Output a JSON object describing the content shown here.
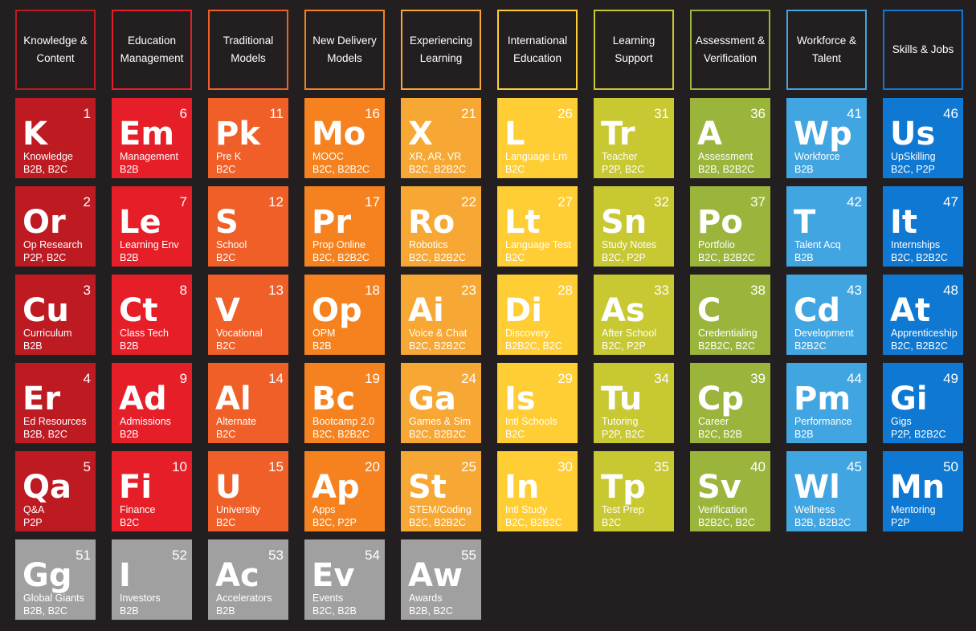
{
  "columns": [
    {
      "label": [
        "Knowledge &",
        "Content"
      ],
      "color": "#bd1a22"
    },
    {
      "label": [
        "Education",
        "Management"
      ],
      "color": "#e61e28"
    },
    {
      "label": [
        "Traditional",
        "Models"
      ],
      "color": "#f05f28"
    },
    {
      "label": [
        "New Delivery",
        "Models"
      ],
      "color": "#f5821f"
    },
    {
      "label": [
        "Experiencing",
        "Learning"
      ],
      "color": "#f7a733"
    },
    {
      "label": [
        "International",
        "Education"
      ],
      "color": "#ffcd34"
    },
    {
      "label": [
        "Learning",
        "Support"
      ],
      "color": "#c8c832"
    },
    {
      "label": [
        "Assessment &",
        "Verification"
      ],
      "color": "#9bb43c"
    },
    {
      "label": [
        "Workforce &",
        "Talent"
      ],
      "color": "#41a5e1"
    },
    {
      "label": [
        "Skills & Jobs"
      ],
      "color": "#0f78d2"
    }
  ],
  "extras_color": "#a0a0a0",
  "elements": [
    {
      "num": "1",
      "sym": "K",
      "name": "Knowledge",
      "biz": "B2B, B2C"
    },
    {
      "num": "2",
      "sym": "Or",
      "name": "Op Research",
      "biz": "P2P, B2C"
    },
    {
      "num": "3",
      "sym": "Cu",
      "name": "Curriculum",
      "biz": "B2B"
    },
    {
      "num": "4",
      "sym": "Er",
      "name": "Ed Resources",
      "biz": "B2B, B2C"
    },
    {
      "num": "5",
      "sym": "Qa",
      "name": "Q&A",
      "biz": "P2P"
    },
    {
      "num": "6",
      "sym": "Em",
      "name": "Management",
      "biz": "B2B"
    },
    {
      "num": "7",
      "sym": "Le",
      "name": "Learning Env",
      "biz": "B2B"
    },
    {
      "num": "8",
      "sym": "Ct",
      "name": "Class Tech",
      "biz": "B2B"
    },
    {
      "num": "9",
      "sym": "Ad",
      "name": "Admissions",
      "biz": "B2B"
    },
    {
      "num": "10",
      "sym": "Fi",
      "name": "Finance",
      "biz": "B2C"
    },
    {
      "num": "11",
      "sym": "Pk",
      "name": "Pre K",
      "biz": "B2C"
    },
    {
      "num": "12",
      "sym": "S",
      "name": "School",
      "biz": "B2C"
    },
    {
      "num": "13",
      "sym": "V",
      "name": "Vocational",
      "biz": "B2C"
    },
    {
      "num": "14",
      "sym": "Al",
      "name": "Alternate",
      "biz": "B2C"
    },
    {
      "num": "15",
      "sym": "U",
      "name": "University",
      "biz": "B2C"
    },
    {
      "num": "16",
      "sym": "Mo",
      "name": "MOOC",
      "biz": "B2C, B2B2C"
    },
    {
      "num": "17",
      "sym": "Pr",
      "name": "Prop Online",
      "biz": "B2C, B2B2C"
    },
    {
      "num": "18",
      "sym": "Op",
      "name": "OPM",
      "biz": "B2B"
    },
    {
      "num": "19",
      "sym": "Bc",
      "name": "Bootcamp 2.0",
      "biz": "B2C, B2B2C"
    },
    {
      "num": "20",
      "sym": "Ap",
      "name": "Apps",
      "biz": "B2C, P2P"
    },
    {
      "num": "21",
      "sym": "X",
      "name": "XR, AR, VR",
      "biz": "B2C, B2B2C"
    },
    {
      "num": "22",
      "sym": "Ro",
      "name": "Robotics",
      "biz": "B2C, B2B2C"
    },
    {
      "num": "23",
      "sym": "Ai",
      "name": "Voice & Chat",
      "biz": "B2C, B2B2C"
    },
    {
      "num": "24",
      "sym": "Ga",
      "name": "Games & Sim",
      "biz": "B2C, B2B2C"
    },
    {
      "num": "25",
      "sym": "St",
      "name": "STEM/Coding",
      "biz": "B2C, B2B2C"
    },
    {
      "num": "26",
      "sym": "L",
      "name": "Language Lrn",
      "biz": "B2C"
    },
    {
      "num": "27",
      "sym": "Lt",
      "name": "Language Test",
      "biz": "B2C"
    },
    {
      "num": "28",
      "sym": "Di",
      "name": "Discovery",
      "biz": "B2B2C, B2C"
    },
    {
      "num": "29",
      "sym": "Is",
      "name": "Intl Schools",
      "biz": "B2C"
    },
    {
      "num": "30",
      "sym": "In",
      "name": "Intl Study",
      "biz": "B2C, B2B2C"
    },
    {
      "num": "31",
      "sym": "Tr",
      "name": "Teacher",
      "biz": "P2P, B2C"
    },
    {
      "num": "32",
      "sym": "Sn",
      "name": "Study Notes",
      "biz": "B2C, P2P"
    },
    {
      "num": "33",
      "sym": "As",
      "name": "After School",
      "biz": "B2C, P2P"
    },
    {
      "num": "34",
      "sym": "Tu",
      "name": "Tutoring",
      "biz": "P2P, B2C"
    },
    {
      "num": "35",
      "sym": "Tp",
      "name": "Test Prep",
      "biz": "B2C"
    },
    {
      "num": "36",
      "sym": "A",
      "name": "Assessment",
      "biz": "B2B, B2B2C"
    },
    {
      "num": "37",
      "sym": "Po",
      "name": "Portfolio",
      "biz": "B2C, B2B2C"
    },
    {
      "num": "38",
      "sym": "C",
      "name": "Credentialing",
      "biz": "B2B2C, B2C"
    },
    {
      "num": "39",
      "sym": "Cp",
      "name": "Career",
      "biz": "B2C, B2B"
    },
    {
      "num": "40",
      "sym": "Sv",
      "name": "Verification",
      "biz": "B2B2C, B2C"
    },
    {
      "num": "41",
      "sym": "Wp",
      "name": "Workforce",
      "biz": "B2B"
    },
    {
      "num": "42",
      "sym": "T",
      "name": "Talent Acq",
      "biz": "B2B"
    },
    {
      "num": "43",
      "sym": "Cd",
      "name": "Development",
      "biz": "B2B2C"
    },
    {
      "num": "44",
      "sym": "Pm",
      "name": "Performance",
      "biz": "B2B"
    },
    {
      "num": "45",
      "sym": "Wl",
      "name": "Wellness",
      "biz": "B2B, B2B2C"
    },
    {
      "num": "46",
      "sym": "Us",
      "name": "UpSkilling",
      "biz": "B2C, P2P"
    },
    {
      "num": "47",
      "sym": "It",
      "name": "Internships",
      "biz": "B2C, B2B2C"
    },
    {
      "num": "48",
      "sym": "At",
      "name": "Apprenticeship",
      "biz": "B2C, B2B2C"
    },
    {
      "num": "49",
      "sym": "Gi",
      "name": "Gigs",
      "biz": "P2P, B2B2C"
    },
    {
      "num": "50",
      "sym": "Mn",
      "name": "Mentoring",
      "biz": "P2P"
    },
    {
      "num": "51",
      "sym": "Gg",
      "name": "Global Giants",
      "biz": "B2B, B2C"
    },
    {
      "num": "52",
      "sym": "I",
      "name": "Investors",
      "biz": "B2B"
    },
    {
      "num": "53",
      "sym": "Ac",
      "name": "Accelerators",
      "biz": "B2B"
    },
    {
      "num": "54",
      "sym": "Ev",
      "name": "Events",
      "biz": "B2C, B2B"
    },
    {
      "num": "55",
      "sym": "Aw",
      "name": "Awards",
      "biz": "B2B, B2C"
    }
  ]
}
